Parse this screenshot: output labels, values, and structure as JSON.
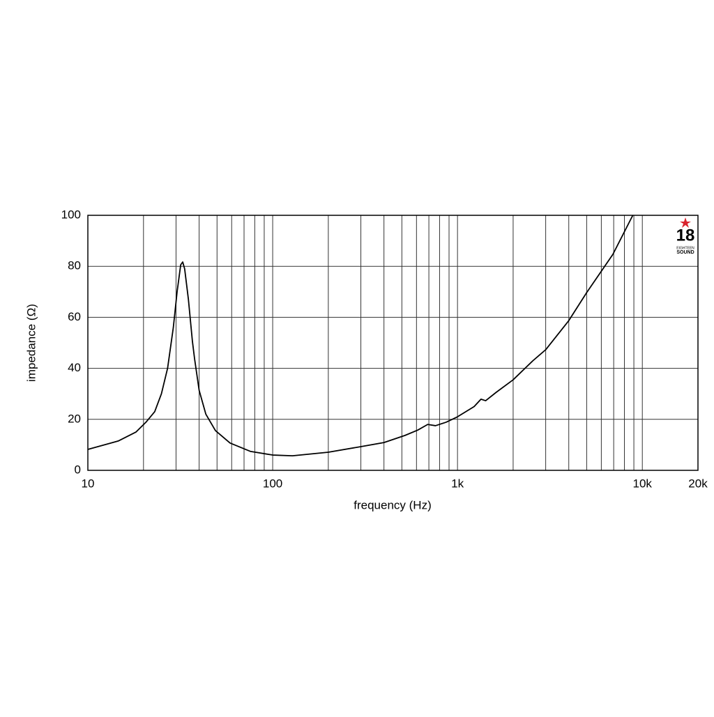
{
  "chart_data": {
    "type": "line",
    "x_label": "frequency (Hz)",
    "y_label": "impedance (Ω)",
    "log_x": true,
    "grid": true,
    "color": "#000000",
    "xlim": [
      10,
      20000
    ],
    "ylim": [
      0,
      100
    ],
    "xticks": [
      10,
      100,
      {
        "value": 1000,
        "label": "1k"
      },
      {
        "value": 10000,
        "label": "10k"
      },
      {
        "value": 20000,
        "label": "20k"
      }
    ],
    "xgrid": [
      20,
      30,
      40,
      50,
      60,
      70,
      80,
      90,
      200,
      300,
      400,
      500,
      600,
      700,
      800,
      900,
      2000,
      3000,
      4000,
      5000,
      6000,
      7000,
      8000,
      9000
    ],
    "yticks": [
      0,
      20,
      40,
      60,
      80,
      100
    ],
    "x": [
      10,
      14.6,
      18.2,
      20.7,
      23,
      25,
      27,
      29,
      30.4,
      31.8,
      32.6,
      33.4,
      35,
      36.8,
      37.8,
      40,
      43.5,
      49,
      58.8,
      76,
      100,
      128,
      200,
      300,
      400,
      520,
      610,
      690,
      760,
      870,
      1000,
      1230,
      1340,
      1420,
      1620,
      2000,
      2560,
      3000,
      4000,
      5000,
      6930,
      8880
    ],
    "values": [
      8.2,
      11.5,
      15,
      19,
      23,
      30,
      40,
      56,
      70,
      80.6,
      81.7,
      79,
      67,
      50.5,
      43.7,
      31.4,
      22,
      15.6,
      10.7,
      7.4,
      6,
      5.7,
      7.1,
      9.3,
      10.9,
      13.7,
      15.8,
      18,
      17.5,
      18.9,
      21,
      25,
      27.9,
      27.3,
      30.6,
      35.5,
      43,
      47.3,
      58.7,
      69.7,
      84.7,
      100
    ]
  },
  "logo": {
    "number": "18",
    "line1": "EIGHTEEN",
    "line2": "SOUND"
  }
}
